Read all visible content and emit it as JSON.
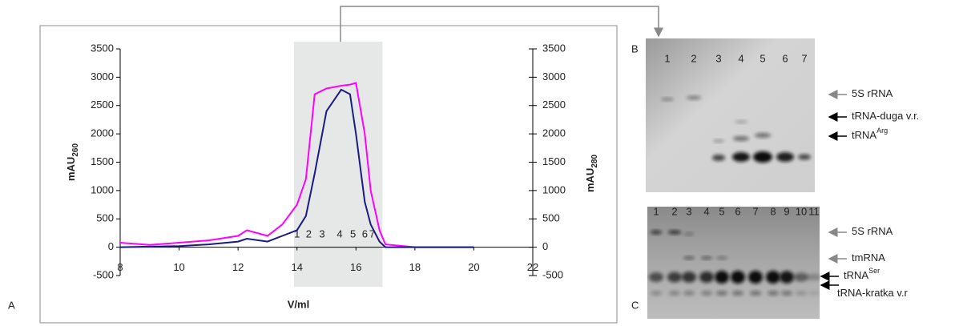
{
  "chart_data": {
    "type": "line",
    "y_label": {
      "text": "mAU",
      "sub": "260"
    },
    "y2_label": {
      "text": "mAU",
      "sub": "280"
    },
    "x_label": "V/ml",
    "x": [
      8,
      9,
      10,
      11,
      12,
      12.3,
      13,
      13.5,
      14,
      14.3,
      14.6,
      15,
      15.5,
      15.8,
      16,
      16.3,
      16.5,
      16.8,
      17,
      18,
      19,
      20
    ],
    "series": [
      {
        "color": "#ff00ff",
        "values": [
          80,
          40,
          80,
          120,
          200,
          300,
          200,
          400,
          750,
          1200,
          2700,
          2800,
          2850,
          2870,
          2900,
          2000,
          1000,
          300,
          50,
          0,
          0,
          0
        ]
      },
      {
        "color": "#1a1a80",
        "axis": "y2",
        "values": [
          0,
          10,
          20,
          50,
          100,
          150,
          100,
          200,
          300,
          550,
          1300,
          2400,
          2780,
          2700,
          2000,
          800,
          400,
          100,
          0,
          0,
          0,
          0
        ]
      }
    ],
    "xlim": [
      8,
      22
    ],
    "xticks": [
      8,
      10,
      12,
      14,
      16,
      18,
      20,
      22
    ],
    "ylim": [
      -500,
      3500
    ],
    "yticks": [
      -500,
      0,
      500,
      1000,
      1500,
      2000,
      2500,
      3000,
      3500
    ],
    "y2lim": [
      -500,
      3500
    ],
    "y2ticks": [
      -500,
      0,
      500,
      1000,
      1500,
      2000,
      2500,
      3000,
      3500
    ],
    "shaded_region": [
      13.9,
      16.9
    ],
    "fractions": {
      "labels": [
        "1",
        "2",
        "3",
        "4",
        "5",
        "6",
        "7"
      ],
      "x": [
        14.0,
        14.4,
        14.85,
        15.45,
        15.9,
        16.3,
        16.55
      ]
    },
    "grid": false
  },
  "panel_labels": [
    "A",
    "B",
    "C"
  ],
  "gels": {
    "B": {
      "lanes": [
        "1",
        "2",
        "3",
        "4",
        "5",
        "6",
        "7"
      ],
      "labels": [
        {
          "text": "5S rRNA"
        },
        {
          "text": "tRNA-duga v.r."
        },
        {
          "text": "tRNA",
          "sup": "Arg"
        }
      ]
    },
    "C": {
      "lanes": [
        "1",
        "2",
        "3",
        "4",
        "5",
        "6",
        "7",
        "8",
        "9",
        "10",
        "11"
      ],
      "labels": [
        {
          "text": "5S rRNA"
        },
        {
          "text": "tmRNA"
        },
        {
          "text": "tRNA",
          "sup": "Ser"
        },
        {
          "text": "tRNA-kratka v.r"
        }
      ]
    }
  }
}
